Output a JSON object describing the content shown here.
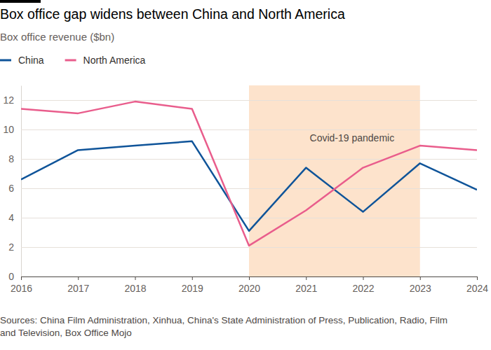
{
  "chart_data": {
    "type": "line",
    "title": "Box office gap widens between China and North America",
    "subtitle": "Box office revenue ($bn)",
    "x": [
      2016,
      2017,
      2018,
      2019,
      2020,
      2021,
      2022,
      2023,
      2024
    ],
    "series": [
      {
        "name": "China",
        "color": "#0f5499",
        "values": [
          6.6,
          8.6,
          8.9,
          9.2,
          3.1,
          7.4,
          4.4,
          7.7,
          5.9
        ]
      },
      {
        "name": "North America",
        "color": "#e95d8c",
        "values": [
          11.4,
          11.1,
          11.9,
          11.4,
          2.1,
          4.5,
          7.4,
          8.9,
          8.6
        ]
      }
    ],
    "xlim": [
      2016,
      2024
    ],
    "xticks": [
      2016,
      2017,
      2018,
      2019,
      2020,
      2021,
      2022,
      2023,
      2024
    ],
    "ylim": [
      0,
      13
    ],
    "yticks": [
      0,
      2,
      4,
      6,
      8,
      10,
      12
    ],
    "grid": true,
    "legend": "top-left",
    "shaded_region": {
      "x": [
        2020,
        2023
      ],
      "label": "Covid-19 pandemic",
      "color": "#fde3cc"
    },
    "source": "Sources: China Film Administration, Xinhua, China's State Administration of Press, Publication, Radio, Film and Television, Box Office Mojo"
  }
}
